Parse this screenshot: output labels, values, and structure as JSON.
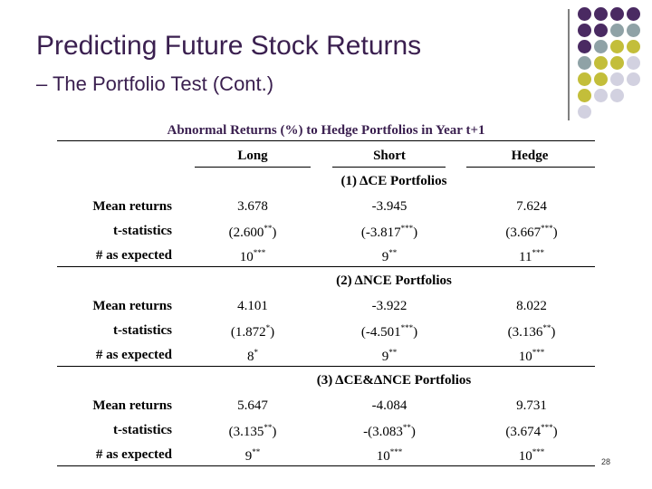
{
  "slide": {
    "title": "Predicting Future Stock Returns",
    "subtitle": "– The Portfolio Test (Cont.)",
    "page_number": "28"
  },
  "colors": {
    "purple": "#4a2a62",
    "gray": "#8fa2a6",
    "yellow": "#c3be3a",
    "lavender": "#d2d1e0",
    "title_color": "#3a1f4f"
  },
  "table": {
    "title": "Abnormal Returns (%) to Hedge Portfolios in Year t+1",
    "columns": [
      "Long",
      "Short",
      "Hedge"
    ],
    "sections": [
      {
        "label": "(1) ΔCE Portfolios",
        "rows": [
          {
            "label": "Mean returns",
            "cells": [
              {
                "text": "3.678",
                "sup": ""
              },
              {
                "text": "-3.945",
                "sup": ""
              },
              {
                "text": "7.624",
                "sup": ""
              }
            ]
          },
          {
            "label": "t-statistics",
            "cells": [
              {
                "text": "(2.600",
                "sup": "**",
                "after": ")"
              },
              {
                "text": "(-3.817",
                "sup": "***",
                "after": ")"
              },
              {
                "text": "(3.667",
                "sup": "***",
                "after": ")"
              }
            ]
          },
          {
            "label": "# as expected",
            "cells": [
              {
                "text": "10",
                "sup": "***"
              },
              {
                "text": "9",
                "sup": "**"
              },
              {
                "text": "11",
                "sup": "***"
              }
            ]
          }
        ]
      },
      {
        "label": "(2) ΔNCE Portfolios",
        "rows": [
          {
            "label": "Mean returns",
            "cells": [
              {
                "text": "4.101",
                "sup": ""
              },
              {
                "text": "-3.922",
                "sup": ""
              },
              {
                "text": "8.022",
                "sup": ""
              }
            ]
          },
          {
            "label": "t-statistics",
            "cells": [
              {
                "text": "(1.872",
                "sup": "*",
                "after": ")"
              },
              {
                "text": "(-4.501",
                "sup": "***",
                "after": ")"
              },
              {
                "text": "(3.136",
                "sup": "**",
                "after": ")"
              }
            ]
          },
          {
            "label": "# as expected",
            "cells": [
              {
                "text": "8",
                "sup": "*"
              },
              {
                "text": "9",
                "sup": "**"
              },
              {
                "text": "10",
                "sup": "***"
              }
            ]
          }
        ]
      },
      {
        "label": "(3) ΔCE&ΔNCE Portfolios",
        "rows": [
          {
            "label": "Mean returns",
            "cells": [
              {
                "text": "5.647",
                "sup": ""
              },
              {
                "text": "-4.084",
                "sup": ""
              },
              {
                "text": "9.731",
                "sup": ""
              }
            ]
          },
          {
            "label": "t-statistics",
            "cells": [
              {
                "text": "(3.135",
                "sup": "**",
                "after": ")"
              },
              {
                "text": "-(3.083",
                "sup": "**",
                "after": ")"
              },
              {
                "text": "(3.674",
                "sup": "***",
                "after": ")"
              }
            ]
          },
          {
            "label": "# as expected",
            "cells": [
              {
                "text": "9",
                "sup": "**"
              },
              {
                "text": "10",
                "sup": "***"
              },
              {
                "text": "10",
                "sup": "***"
              }
            ]
          }
        ]
      }
    ]
  }
}
